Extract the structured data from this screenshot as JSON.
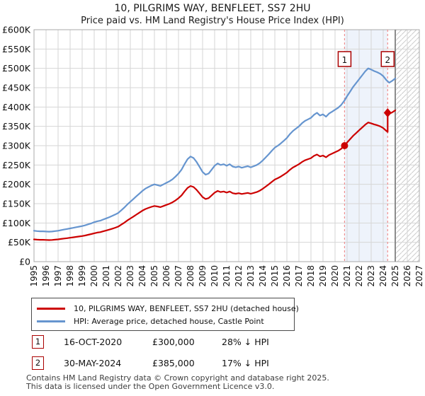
{
  "header": {
    "title": "10, PILGRIMS WAY, BENFLEET, SS7 2HU",
    "subtitle": "Price paid vs. HM Land Registry's House Price Index (HPI)"
  },
  "colors": {
    "price_line": "#cc0000",
    "hpi_line": "#6695cf",
    "sale_dashed": "#f08f8f",
    "sale_band": "#eef3fb",
    "grid": "#d6d6d6",
    "plot_border": "#a8a8a8",
    "now_line": "#8c8c8c",
    "hatch_line": "#cccccc",
    "marker_box_border": "#aa0000"
  },
  "chart_data": {
    "type": "line",
    "title": "10, PILGRIMS WAY, BENFLEET, SS7 2HU",
    "subtitle": "Price paid vs. HM Land Registry's House Price Index (HPI)",
    "grid": true,
    "legend_position": "bottom-left",
    "x_axis": {
      "min": 1995,
      "max": 2027,
      "ticks": [
        "1995",
        "1996",
        "1997",
        "1998",
        "1999",
        "2000",
        "2001",
        "2002",
        "2003",
        "2004",
        "2005",
        "2006",
        "2007",
        "2008",
        "2009",
        "2010",
        "2011",
        "2012",
        "2013",
        "2014",
        "2015",
        "2016",
        "2017",
        "2018",
        "2019",
        "2020",
        "2021",
        "2022",
        "2023",
        "2024",
        "2025",
        "2026",
        "2027"
      ]
    },
    "y_axis": {
      "unit": "GBP",
      "values_in": "thousands",
      "min_k": 0,
      "max_k": 600,
      "tick_step_k": 50,
      "tick_labels": [
        "£0",
        "£50K",
        "£100K",
        "£150K",
        "£200K",
        "£250K",
        "£300K",
        "£350K",
        "£400K",
        "£450K",
        "£500K",
        "£550K",
        "£600K"
      ]
    },
    "sale_band": {
      "start": 2020.79,
      "end": 2024.37
    },
    "now_line_year": 2025,
    "future_hatch": {
      "start": 2025,
      "end": 2027
    },
    "markers": [
      {
        "label": "1",
        "year": 2020.79,
        "value_k": 300,
        "shape": "circle"
      },
      {
        "label": "2",
        "year": 2024.37,
        "value_k": 385,
        "shape": "diamond"
      }
    ],
    "series": [
      {
        "id": "hpi",
        "legend": "HPI: Average price, detached house, Castle Point",
        "color": "#6695cf",
        "points_k": [
          [
            1995,
            80
          ],
          [
            1995.25,
            79
          ],
          [
            1995.5,
            78.5
          ],
          [
            1995.75,
            78.5
          ],
          [
            1996,
            78
          ],
          [
            1996.25,
            77.5
          ],
          [
            1996.5,
            78
          ],
          [
            1996.75,
            79
          ],
          [
            1997,
            80
          ],
          [
            1997.25,
            81.5
          ],
          [
            1997.5,
            83
          ],
          [
            1997.75,
            84.5
          ],
          [
            1998,
            86
          ],
          [
            1998.25,
            87.5
          ],
          [
            1998.5,
            89
          ],
          [
            1998.75,
            90.5
          ],
          [
            1999,
            92
          ],
          [
            1999.25,
            94
          ],
          [
            1999.5,
            96.5
          ],
          [
            1999.75,
            99
          ],
          [
            2000,
            102
          ],
          [
            2000.25,
            104.5
          ],
          [
            2000.5,
            106
          ],
          [
            2000.75,
            109
          ],
          [
            2001,
            112
          ],
          [
            2001.25,
            115
          ],
          [
            2001.5,
            118.5
          ],
          [
            2001.75,
            122
          ],
          [
            2002,
            126
          ],
          [
            2002.25,
            133
          ],
          [
            2002.5,
            140
          ],
          [
            2002.75,
            148
          ],
          [
            2003,
            155
          ],
          [
            2003.25,
            162
          ],
          [
            2003.5,
            169
          ],
          [
            2003.75,
            176
          ],
          [
            2004,
            183
          ],
          [
            2004.25,
            189
          ],
          [
            2004.5,
            193
          ],
          [
            2004.75,
            197
          ],
          [
            2005,
            200
          ],
          [
            2005.25,
            198
          ],
          [
            2005.5,
            196
          ],
          [
            2005.75,
            200
          ],
          [
            2006,
            204
          ],
          [
            2006.25,
            208
          ],
          [
            2006.5,
            213
          ],
          [
            2006.75,
            220
          ],
          [
            2007,
            228
          ],
          [
            2007.25,
            238
          ],
          [
            2007.5,
            252
          ],
          [
            2007.75,
            265
          ],
          [
            2008,
            272
          ],
          [
            2008.25,
            268
          ],
          [
            2008.5,
            258
          ],
          [
            2008.75,
            245
          ],
          [
            2009,
            232
          ],
          [
            2009.25,
            225
          ],
          [
            2009.5,
            228
          ],
          [
            2009.75,
            238
          ],
          [
            2010,
            248
          ],
          [
            2010.25,
            254
          ],
          [
            2010.5,
            250
          ],
          [
            2010.75,
            252
          ],
          [
            2011,
            248
          ],
          [
            2011.25,
            252
          ],
          [
            2011.5,
            246
          ],
          [
            2011.75,
            244
          ],
          [
            2012,
            246
          ],
          [
            2012.25,
            243
          ],
          [
            2012.5,
            245
          ],
          [
            2012.75,
            247
          ],
          [
            2013,
            244
          ],
          [
            2013.25,
            247
          ],
          [
            2013.5,
            250
          ],
          [
            2013.75,
            255
          ],
          [
            2014,
            262
          ],
          [
            2014.25,
            270
          ],
          [
            2014.5,
            278
          ],
          [
            2014.75,
            287
          ],
          [
            2015,
            295
          ],
          [
            2015.25,
            300
          ],
          [
            2015.5,
            306
          ],
          [
            2015.75,
            313
          ],
          [
            2016,
            320
          ],
          [
            2016.25,
            330
          ],
          [
            2016.5,
            338
          ],
          [
            2016.75,
            344
          ],
          [
            2017,
            350
          ],
          [
            2017.25,
            358
          ],
          [
            2017.5,
            364
          ],
          [
            2017.75,
            368
          ],
          [
            2018,
            372
          ],
          [
            2018.25,
            380
          ],
          [
            2018.5,
            385
          ],
          [
            2018.75,
            378
          ],
          [
            2019,
            381
          ],
          [
            2019.25,
            375
          ],
          [
            2019.5,
            383
          ],
          [
            2019.75,
            388
          ],
          [
            2020,
            393
          ],
          [
            2020.25,
            398
          ],
          [
            2020.5,
            405
          ],
          [
            2020.79,
            417
          ],
          [
            2021,
            428
          ],
          [
            2021.25,
            440
          ],
          [
            2021.5,
            452
          ],
          [
            2021.75,
            462
          ],
          [
            2022,
            472
          ],
          [
            2022.25,
            482
          ],
          [
            2022.5,
            492
          ],
          [
            2022.75,
            500
          ],
          [
            2023,
            497
          ],
          [
            2023.25,
            493
          ],
          [
            2023.5,
            490
          ],
          [
            2023.75,
            486
          ],
          [
            2024,
            480
          ],
          [
            2024.25,
            470
          ],
          [
            2024.5,
            463
          ],
          [
            2024.75,
            468
          ],
          [
            2025,
            474
          ]
        ]
      },
      {
        "id": "price-paid",
        "legend": "10, PILGRIMS WAY, BENFLEET, SS7 2HU (detached house)",
        "color": "#cc0000",
        "points_k": [
          [
            1995,
            57.6
          ],
          [
            1995.25,
            56.9
          ],
          [
            1995.5,
            56.5
          ],
          [
            1995.75,
            56.5
          ],
          [
            1996,
            56.2
          ],
          [
            1996.25,
            55.8
          ],
          [
            1996.5,
            56.2
          ],
          [
            1996.75,
            56.9
          ],
          [
            1997,
            57.6
          ],
          [
            1997.25,
            58.7
          ],
          [
            1997.5,
            59.8
          ],
          [
            1997.75,
            60.8
          ],
          [
            1998,
            61.9
          ],
          [
            1998.25,
            63
          ],
          [
            1998.5,
            64.1
          ],
          [
            1998.75,
            65.2
          ],
          [
            1999,
            66.2
          ],
          [
            1999.25,
            67.7
          ],
          [
            1999.5,
            69.5
          ],
          [
            1999.75,
            71.3
          ],
          [
            2000,
            73.4
          ],
          [
            2000.25,
            75.2
          ],
          [
            2000.5,
            76.3
          ],
          [
            2000.75,
            78.5
          ],
          [
            2001,
            80.6
          ],
          [
            2001.25,
            82.8
          ],
          [
            2001.5,
            85.3
          ],
          [
            2001.75,
            87.8
          ],
          [
            2002,
            90.7
          ],
          [
            2002.25,
            95.8
          ],
          [
            2002.5,
            100.8
          ],
          [
            2002.75,
            106.6
          ],
          [
            2003,
            111.6
          ],
          [
            2003.25,
            116.6
          ],
          [
            2003.5,
            121.7
          ],
          [
            2003.75,
            126.7
          ],
          [
            2004,
            131.8
          ],
          [
            2004.25,
            136.1
          ],
          [
            2004.5,
            139
          ],
          [
            2004.75,
            141.8
          ],
          [
            2005,
            144
          ],
          [
            2005.25,
            142.6
          ],
          [
            2005.5,
            141.1
          ],
          [
            2005.75,
            144
          ],
          [
            2006,
            146.9
          ],
          [
            2006.25,
            149.8
          ],
          [
            2006.5,
            153.4
          ],
          [
            2006.75,
            158.4
          ],
          [
            2007,
            164.2
          ],
          [
            2007.25,
            171.4
          ],
          [
            2007.5,
            181.4
          ],
          [
            2007.75,
            190.8
          ],
          [
            2008,
            195.8
          ],
          [
            2008.25,
            193
          ],
          [
            2008.5,
            185.8
          ],
          [
            2008.75,
            176.4
          ],
          [
            2009,
            167
          ],
          [
            2009.25,
            162
          ],
          [
            2009.5,
            164.2
          ],
          [
            2009.75,
            171.4
          ],
          [
            2010,
            178.6
          ],
          [
            2010.25,
            182.9
          ],
          [
            2010.5,
            180
          ],
          [
            2010.75,
            181.4
          ],
          [
            2011,
            178.6
          ],
          [
            2011.25,
            181.4
          ],
          [
            2011.5,
            177.1
          ],
          [
            2011.75,
            175.7
          ],
          [
            2012,
            177.1
          ],
          [
            2012.25,
            175
          ],
          [
            2012.5,
            176.4
          ],
          [
            2012.75,
            177.8
          ],
          [
            2013,
            175.7
          ],
          [
            2013.25,
            177.8
          ],
          [
            2013.5,
            180
          ],
          [
            2013.75,
            183.6
          ],
          [
            2014,
            188.6
          ],
          [
            2014.25,
            194.4
          ],
          [
            2014.5,
            200.2
          ],
          [
            2014.75,
            206.6
          ],
          [
            2015,
            212.4
          ],
          [
            2015.25,
            216
          ],
          [
            2015.5,
            220.3
          ],
          [
            2015.75,
            225.4
          ],
          [
            2016,
            230.4
          ],
          [
            2016.25,
            237.6
          ],
          [
            2016.5,
            243.4
          ],
          [
            2016.75,
            247.7
          ],
          [
            2017,
            252
          ],
          [
            2017.25,
            257.8
          ],
          [
            2017.5,
            262.1
          ],
          [
            2017.75,
            265
          ],
          [
            2018,
            267.8
          ],
          [
            2018.25,
            273.6
          ],
          [
            2018.5,
            277.2
          ],
          [
            2018.75,
            272.2
          ],
          [
            2019,
            274.3
          ],
          [
            2019.25,
            270
          ],
          [
            2019.5,
            275.8
          ],
          [
            2019.75,
            279.4
          ],
          [
            2020,
            283
          ],
          [
            2020.25,
            286.6
          ],
          [
            2020.5,
            291.6
          ],
          [
            2020.79,
            300
          ],
          [
            2021,
            308.2
          ],
          [
            2021.25,
            316.8
          ],
          [
            2021.5,
            325.4
          ],
          [
            2021.75,
            332.6
          ],
          [
            2022,
            339.8
          ],
          [
            2022.25,
            347
          ],
          [
            2022.5,
            354.2
          ],
          [
            2022.75,
            360
          ],
          [
            2023,
            357.8
          ],
          [
            2023.25,
            355
          ],
          [
            2023.5,
            352.8
          ],
          [
            2023.75,
            350
          ],
          [
            2024,
            345.6
          ],
          [
            2024.25,
            338.4
          ],
          [
            2024.37,
            335.5
          ],
          [
            2024.37,
            385
          ],
          [
            2024.5,
            382.3
          ],
          [
            2024.75,
            386.4
          ],
          [
            2025,
            391.3
          ]
        ]
      }
    ]
  },
  "legend": {
    "items": [
      {
        "label": "10, PILGRIMS WAY, BENFLEET, SS7 2HU (detached house)",
        "color": "#cc0000"
      },
      {
        "label": "HPI: Average price, detached house, Castle Point",
        "color": "#6695cf"
      }
    ]
  },
  "transactions": [
    {
      "label": "1",
      "date": "16-OCT-2020",
      "price": "£300,000",
      "vs_hpi": "28% ↓ HPI"
    },
    {
      "label": "2",
      "date": "30-MAY-2024",
      "price": "£385,000",
      "vs_hpi": "17% ↓ HPI"
    }
  ],
  "footer": {
    "line1": "Contains HM Land Registry data © Crown copyright and database right 2025.",
    "line2": "This data is licensed under the Open Government Licence v3.0."
  }
}
